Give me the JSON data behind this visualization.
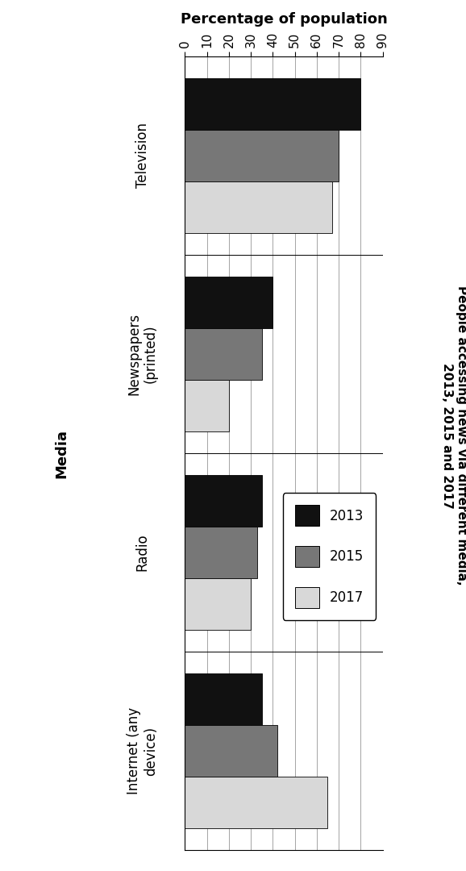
{
  "categories": [
    "Television",
    "Newspapers\n(printed)",
    "Radio",
    "Internet (any\ndevice)"
  ],
  "years": [
    "2013",
    "2015",
    "2017"
  ],
  "values": [
    [
      80,
      70,
      67
    ],
    [
      40,
      35,
      20
    ],
    [
      35,
      33,
      30
    ],
    [
      35,
      42,
      65
    ]
  ],
  "colors": [
    "#111111",
    "#777777",
    "#d8d8d8"
  ],
  "xlabel": "Percentage of population",
  "ylabel": "Media",
  "chart_title": "People accessing news via different media,\n2013, 2015 and 2017",
  "xlim": [
    0,
    90
  ],
  "xticks": [
    0,
    10,
    20,
    30,
    40,
    50,
    60,
    70,
    80,
    90
  ],
  "legend_labels": [
    "2013",
    "2015",
    "2017"
  ],
  "bar_height": 0.26,
  "figsize": [
    5.78,
    10.8
  ],
  "dpi": 100
}
